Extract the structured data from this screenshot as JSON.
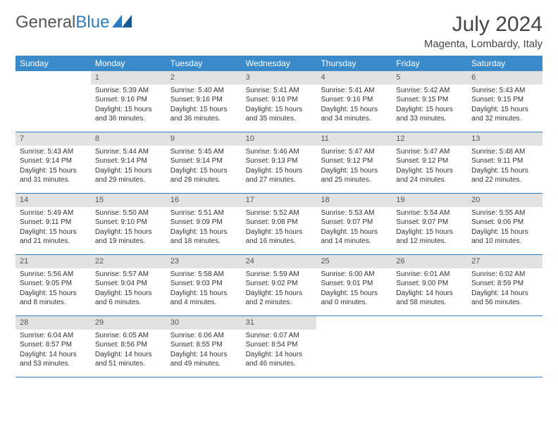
{
  "brand": {
    "part1": "General",
    "part2": "Blue"
  },
  "title": "July 2024",
  "location": "Magenta, Lombardy, Italy",
  "colors": {
    "header_bg": "#3b8bca",
    "header_text": "#ffffff",
    "row_border": "#2e7cc0",
    "daynum_bg": "#e2e2e2",
    "text": "#333333",
    "background": "#ffffff"
  },
  "typography": {
    "title_fontsize": 30,
    "location_fontsize": 15,
    "weekday_fontsize": 12,
    "body_fontsize": 10
  },
  "weekdays": [
    "Sunday",
    "Monday",
    "Tuesday",
    "Wednesday",
    "Thursday",
    "Friday",
    "Saturday"
  ],
  "weeks": [
    [
      {
        "day": "",
        "sunrise": "",
        "sunset": "",
        "daylight": ""
      },
      {
        "day": "1",
        "sunrise": "Sunrise: 5:39 AM",
        "sunset": "Sunset: 9:16 PM",
        "daylight": "Daylight: 15 hours and 36 minutes."
      },
      {
        "day": "2",
        "sunrise": "Sunrise: 5:40 AM",
        "sunset": "Sunset: 9:16 PM",
        "daylight": "Daylight: 15 hours and 36 minutes."
      },
      {
        "day": "3",
        "sunrise": "Sunrise: 5:41 AM",
        "sunset": "Sunset: 9:16 PM",
        "daylight": "Daylight: 15 hours and 35 minutes."
      },
      {
        "day": "4",
        "sunrise": "Sunrise: 5:41 AM",
        "sunset": "Sunset: 9:16 PM",
        "daylight": "Daylight: 15 hours and 34 minutes."
      },
      {
        "day": "5",
        "sunrise": "Sunrise: 5:42 AM",
        "sunset": "Sunset: 9:15 PM",
        "daylight": "Daylight: 15 hours and 33 minutes."
      },
      {
        "day": "6",
        "sunrise": "Sunrise: 5:43 AM",
        "sunset": "Sunset: 9:15 PM",
        "daylight": "Daylight: 15 hours and 32 minutes."
      }
    ],
    [
      {
        "day": "7",
        "sunrise": "Sunrise: 5:43 AM",
        "sunset": "Sunset: 9:14 PM",
        "daylight": "Daylight: 15 hours and 31 minutes."
      },
      {
        "day": "8",
        "sunrise": "Sunrise: 5:44 AM",
        "sunset": "Sunset: 9:14 PM",
        "daylight": "Daylight: 15 hours and 29 minutes."
      },
      {
        "day": "9",
        "sunrise": "Sunrise: 5:45 AM",
        "sunset": "Sunset: 9:14 PM",
        "daylight": "Daylight: 15 hours and 28 minutes."
      },
      {
        "day": "10",
        "sunrise": "Sunrise: 5:46 AM",
        "sunset": "Sunset: 9:13 PM",
        "daylight": "Daylight: 15 hours and 27 minutes."
      },
      {
        "day": "11",
        "sunrise": "Sunrise: 5:47 AM",
        "sunset": "Sunset: 9:12 PM",
        "daylight": "Daylight: 15 hours and 25 minutes."
      },
      {
        "day": "12",
        "sunrise": "Sunrise: 5:47 AM",
        "sunset": "Sunset: 9:12 PM",
        "daylight": "Daylight: 15 hours and 24 minutes."
      },
      {
        "day": "13",
        "sunrise": "Sunrise: 5:48 AM",
        "sunset": "Sunset: 9:11 PM",
        "daylight": "Daylight: 15 hours and 22 minutes."
      }
    ],
    [
      {
        "day": "14",
        "sunrise": "Sunrise: 5:49 AM",
        "sunset": "Sunset: 9:11 PM",
        "daylight": "Daylight: 15 hours and 21 minutes."
      },
      {
        "day": "15",
        "sunrise": "Sunrise: 5:50 AM",
        "sunset": "Sunset: 9:10 PM",
        "daylight": "Daylight: 15 hours and 19 minutes."
      },
      {
        "day": "16",
        "sunrise": "Sunrise: 5:51 AM",
        "sunset": "Sunset: 9:09 PM",
        "daylight": "Daylight: 15 hours and 18 minutes."
      },
      {
        "day": "17",
        "sunrise": "Sunrise: 5:52 AM",
        "sunset": "Sunset: 9:08 PM",
        "daylight": "Daylight: 15 hours and 16 minutes."
      },
      {
        "day": "18",
        "sunrise": "Sunrise: 5:53 AM",
        "sunset": "Sunset: 9:07 PM",
        "daylight": "Daylight: 15 hours and 14 minutes."
      },
      {
        "day": "19",
        "sunrise": "Sunrise: 5:54 AM",
        "sunset": "Sunset: 9:07 PM",
        "daylight": "Daylight: 15 hours and 12 minutes."
      },
      {
        "day": "20",
        "sunrise": "Sunrise: 5:55 AM",
        "sunset": "Sunset: 9:06 PM",
        "daylight": "Daylight: 15 hours and 10 minutes."
      }
    ],
    [
      {
        "day": "21",
        "sunrise": "Sunrise: 5:56 AM",
        "sunset": "Sunset: 9:05 PM",
        "daylight": "Daylight: 15 hours and 8 minutes."
      },
      {
        "day": "22",
        "sunrise": "Sunrise: 5:57 AM",
        "sunset": "Sunset: 9:04 PM",
        "daylight": "Daylight: 15 hours and 6 minutes."
      },
      {
        "day": "23",
        "sunrise": "Sunrise: 5:58 AM",
        "sunset": "Sunset: 9:03 PM",
        "daylight": "Daylight: 15 hours and 4 minutes."
      },
      {
        "day": "24",
        "sunrise": "Sunrise: 5:59 AM",
        "sunset": "Sunset: 9:02 PM",
        "daylight": "Daylight: 15 hours and 2 minutes."
      },
      {
        "day": "25",
        "sunrise": "Sunrise: 6:00 AM",
        "sunset": "Sunset: 9:01 PM",
        "daylight": "Daylight: 15 hours and 0 minutes."
      },
      {
        "day": "26",
        "sunrise": "Sunrise: 6:01 AM",
        "sunset": "Sunset: 9:00 PM",
        "daylight": "Daylight: 14 hours and 58 minutes."
      },
      {
        "day": "27",
        "sunrise": "Sunrise: 6:02 AM",
        "sunset": "Sunset: 8:59 PM",
        "daylight": "Daylight: 14 hours and 56 minutes."
      }
    ],
    [
      {
        "day": "28",
        "sunrise": "Sunrise: 6:04 AM",
        "sunset": "Sunset: 8:57 PM",
        "daylight": "Daylight: 14 hours and 53 minutes."
      },
      {
        "day": "29",
        "sunrise": "Sunrise: 6:05 AM",
        "sunset": "Sunset: 8:56 PM",
        "daylight": "Daylight: 14 hours and 51 minutes."
      },
      {
        "day": "30",
        "sunrise": "Sunrise: 6:06 AM",
        "sunset": "Sunset: 8:55 PM",
        "daylight": "Daylight: 14 hours and 49 minutes."
      },
      {
        "day": "31",
        "sunrise": "Sunrise: 6:07 AM",
        "sunset": "Sunset: 8:54 PM",
        "daylight": "Daylight: 14 hours and 46 minutes."
      },
      {
        "day": "",
        "sunrise": "",
        "sunset": "",
        "daylight": ""
      },
      {
        "day": "",
        "sunrise": "",
        "sunset": "",
        "daylight": ""
      },
      {
        "day": "",
        "sunrise": "",
        "sunset": "",
        "daylight": ""
      }
    ]
  ]
}
